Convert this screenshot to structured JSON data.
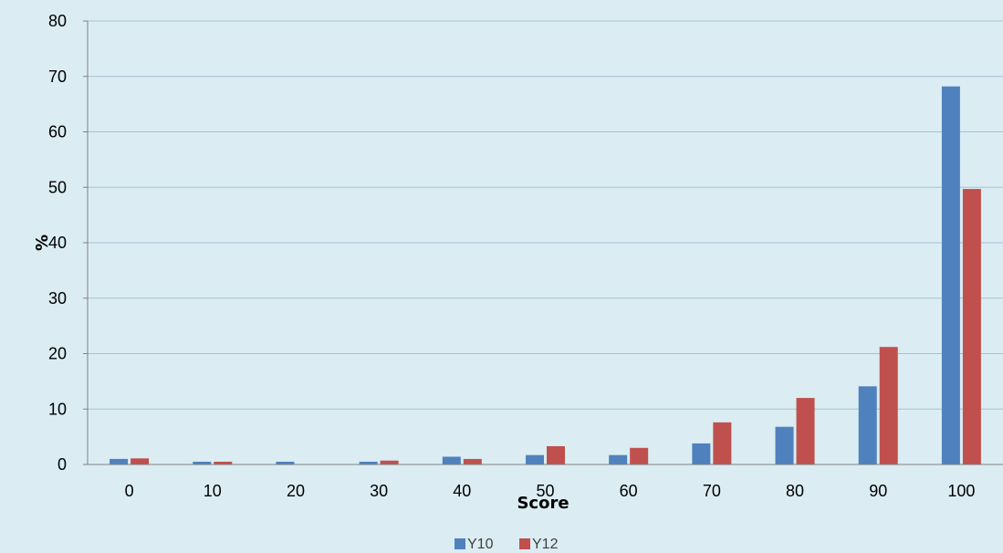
{
  "colors": {
    "background": "#dbedf3",
    "gridline": "#a9bfd6",
    "axis": "#808080"
  },
  "chart_data": {
    "type": "bar",
    "title": "",
    "xlabel": "Score",
    "ylabel": "%",
    "ylim": [
      0,
      80
    ],
    "yticks": [
      "0",
      "10",
      "20",
      "30",
      "40",
      "50",
      "60",
      "70",
      "80"
    ],
    "categories": [
      "0",
      "10",
      "20",
      "30",
      "40",
      "50",
      "60",
      "70",
      "80",
      "90",
      "100"
    ],
    "grid": true,
    "legend_position": "bottom",
    "series": [
      {
        "name": "Y10",
        "color": "#4f81bd",
        "values": [
          1.0,
          0.5,
          0.5,
          0.5,
          1.4,
          1.7,
          1.7,
          3.8,
          6.8,
          14.1,
          68.2
        ]
      },
      {
        "name": "Y12",
        "color": "#c0504d",
        "values": [
          1.1,
          0.5,
          0.0,
          0.7,
          1.0,
          3.3,
          3.0,
          7.6,
          12.0,
          21.2,
          49.7
        ]
      }
    ]
  }
}
